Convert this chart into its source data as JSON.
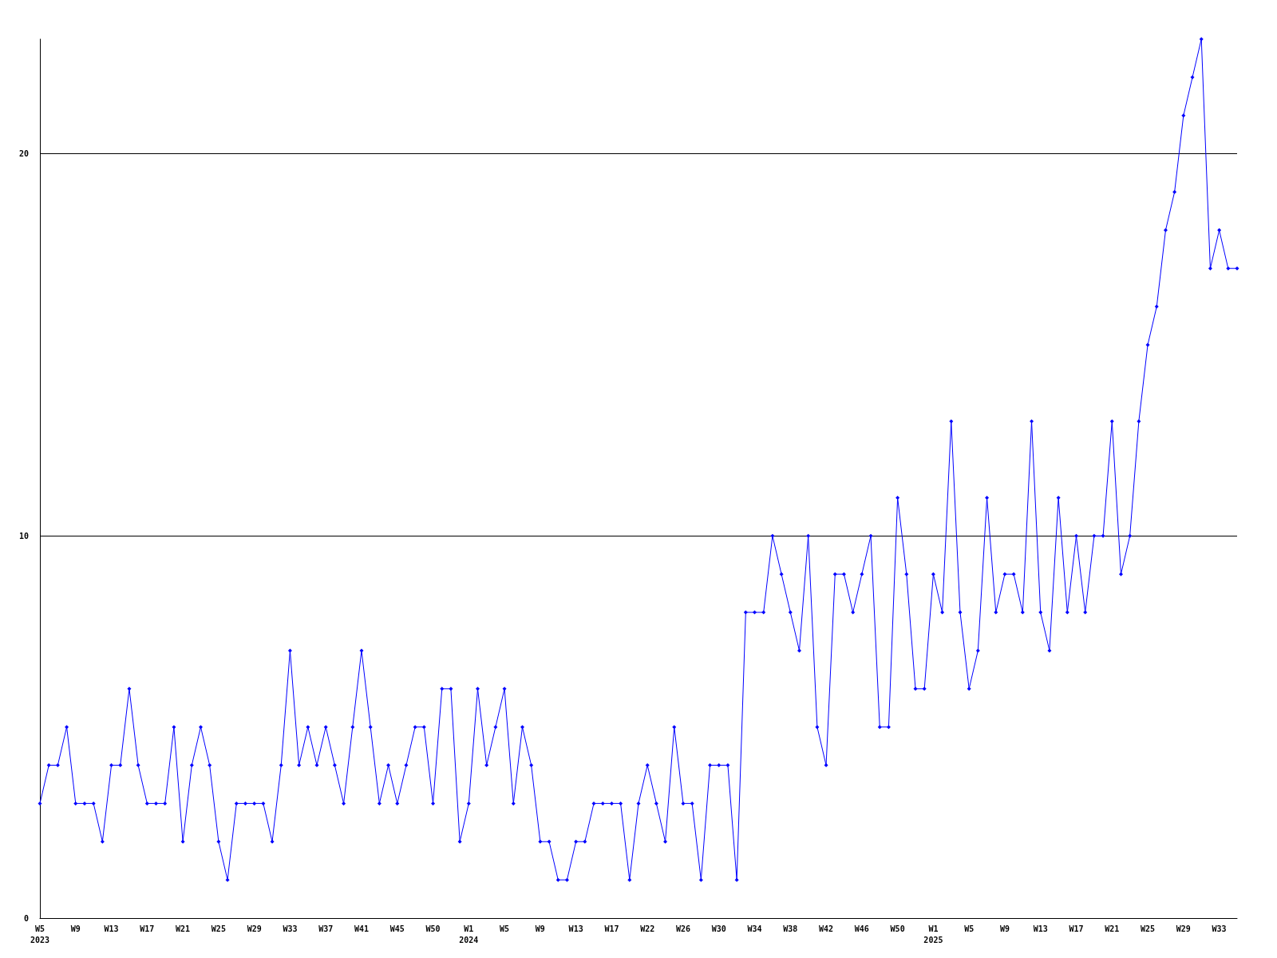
{
  "chart_data": {
    "type": "line",
    "categories": [
      "W5\n2023",
      null,
      null,
      null,
      "W9",
      null,
      null,
      null,
      "W13",
      null,
      null,
      null,
      "W17",
      null,
      null,
      null,
      "W21",
      null,
      null,
      null,
      "W25",
      null,
      null,
      null,
      "W29",
      null,
      null,
      null,
      "W33",
      null,
      null,
      null,
      "W37",
      null,
      null,
      null,
      "W41",
      null,
      null,
      null,
      "W45",
      null,
      null,
      null,
      "W50",
      null,
      null,
      null,
      "W1\n2024",
      null,
      null,
      null,
      "W5",
      null,
      null,
      null,
      "W9",
      null,
      null,
      null,
      "W13",
      null,
      null,
      null,
      "W17",
      null,
      null,
      null,
      "W22",
      null,
      null,
      null,
      "W26",
      null,
      null,
      null,
      "W30",
      null,
      null,
      null,
      "W34",
      null,
      null,
      null,
      "W38",
      null,
      null,
      null,
      "W42",
      null,
      null,
      null,
      "W46",
      null,
      null,
      null,
      "W50",
      null,
      null,
      null,
      "W1\n2025",
      null,
      null,
      null,
      "W5",
      null,
      null,
      null,
      "W9",
      null,
      null,
      null,
      "W13",
      null,
      null,
      null,
      "W17",
      null,
      null,
      null,
      "W21",
      null,
      null,
      null,
      "W25",
      null,
      null,
      null,
      "W29",
      null,
      null,
      null,
      "W33",
      null,
      null
    ],
    "series": [
      {
        "color": "#0000ff",
        "values": [
          3,
          4,
          4,
          5,
          3,
          3,
          3,
          2,
          4,
          4,
          6,
          4,
          3,
          3,
          3,
          5,
          2,
          4,
          5,
          4,
          2,
          1,
          3,
          3,
          3,
          3,
          2,
          4,
          7,
          4,
          5,
          4,
          5,
          4,
          3,
          5,
          7,
          5,
          3,
          4,
          3,
          4,
          5,
          5,
          3,
          6,
          6,
          2,
          3,
          6,
          4,
          5,
          6,
          3,
          5,
          4,
          2,
          2,
          1,
          1,
          2,
          2,
          3,
          3,
          3,
          3,
          1,
          3,
          4,
          3,
          2,
          5,
          3,
          3,
          1,
          4,
          4,
          4,
          1,
          8,
          8,
          8,
          10,
          9,
          8,
          7,
          10,
          5,
          4,
          9,
          9,
          8,
          9,
          10,
          5,
          5,
          11,
          9,
          6,
          6,
          9,
          8,
          13,
          8,
          6,
          7,
          11,
          8,
          9,
          9,
          8,
          13,
          8,
          7,
          11,
          8,
          10,
          8,
          10,
          10,
          13,
          9,
          10,
          13,
          15,
          16,
          18,
          19,
          21,
          22,
          23,
          17,
          18,
          17,
          17
        ]
      }
    ],
    "ylim": [
      0,
      23
    ],
    "yticks": [
      0,
      10,
      20
    ],
    "grid": "y",
    "marker": "diamond",
    "line_style": "solid"
  }
}
